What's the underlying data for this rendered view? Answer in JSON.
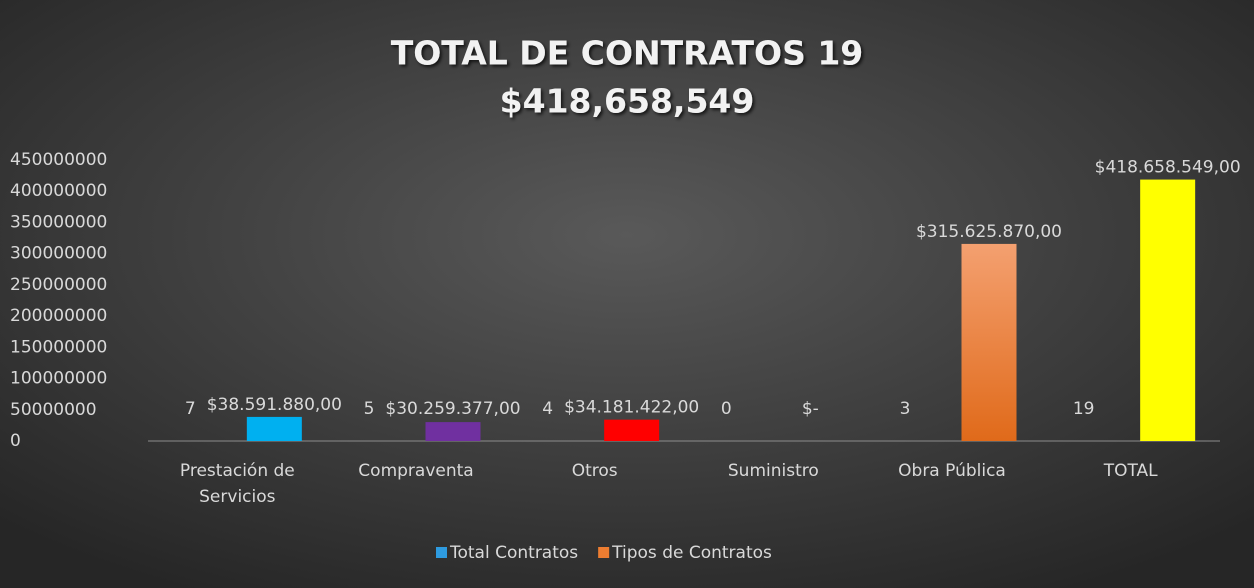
{
  "chart_data": {
    "type": "bar",
    "title": [
      "TOTAL DE CONTRATOS 19",
      "$418,658,549"
    ],
    "categories": [
      "Prestación de Servicios",
      "Compraventa",
      "Otros",
      "Suministro",
      "Obra Pública",
      "TOTAL"
    ],
    "series": [
      {
        "name": "Total Contratos",
        "color": "#2e9be0",
        "values": [
          7,
          5,
          4,
          0,
          3,
          19
        ]
      },
      {
        "name": "Tipos de Contratos",
        "color": "#ed7d31",
        "colors": [
          "#00b0f0",
          "#7030a0",
          "#ff0000",
          "#ed7d31",
          "#ed7d31",
          "#ffff00"
        ],
        "values": [
          38591880,
          30259377,
          34181422,
          0,
          315625870,
          418658549
        ],
        "value_labels": [
          "$38.591.880,00",
          "$30.259.377,00",
          "$34.181.422,00",
          "$-",
          "$315.625.870,00",
          "$418.658.549,00"
        ]
      }
    ],
    "ylim": [
      0,
      450000000
    ],
    "yticks": [
      0,
      50000000,
      100000000,
      150000000,
      200000000,
      250000000,
      300000000,
      350000000,
      400000000,
      450000000
    ],
    "legend": "bottom"
  }
}
